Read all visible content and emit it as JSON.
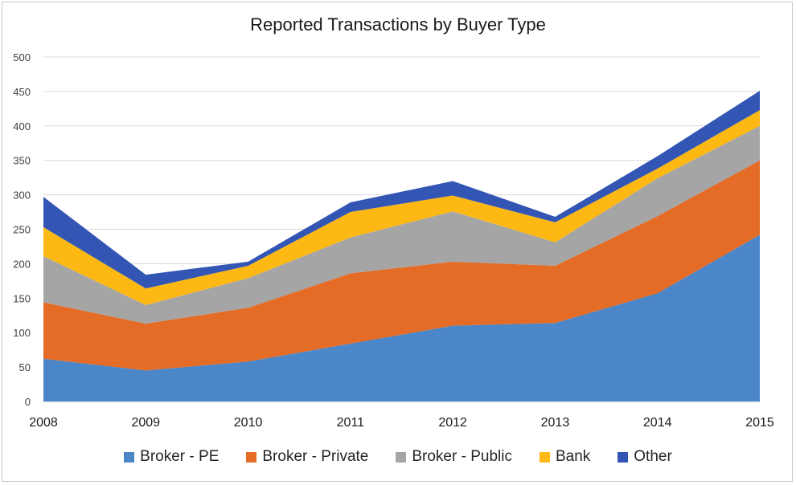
{
  "chart_data": {
    "type": "area",
    "stacked": true,
    "title": "Reported Transactions by Buyer Type",
    "xlabel": "",
    "ylabel": "",
    "categories": [
      "2008",
      "2009",
      "2010",
      "2011",
      "2012",
      "2013",
      "2014",
      "2015"
    ],
    "ylim": [
      0,
      500
    ],
    "yticks": [
      0,
      50,
      100,
      150,
      200,
      250,
      300,
      350,
      400,
      450,
      500
    ],
    "grid": true,
    "legend_position": "bottom",
    "series": [
      {
        "name": "Broker - PE",
        "color": "#4a86c8",
        "values": [
          62,
          45,
          58,
          84,
          110,
          114,
          157,
          242
        ]
      },
      {
        "name": "Broker - Private",
        "color": "#e46c26",
        "values": [
          82,
          68,
          78,
          102,
          93,
          83,
          112,
          108
        ]
      },
      {
        "name": "Broker - Public",
        "color": "#a5a5a5",
        "values": [
          67,
          27,
          43,
          52,
          73,
          34,
          55,
          50
        ]
      },
      {
        "name": "Bank",
        "color": "#fdb813",
        "values": [
          42,
          24,
          18,
          37,
          23,
          29,
          14,
          23
        ]
      },
      {
        "name": "Other",
        "color": "#3356b4",
        "values": [
          44,
          20,
          6,
          14,
          21,
          8,
          18,
          28
        ]
      }
    ]
  }
}
